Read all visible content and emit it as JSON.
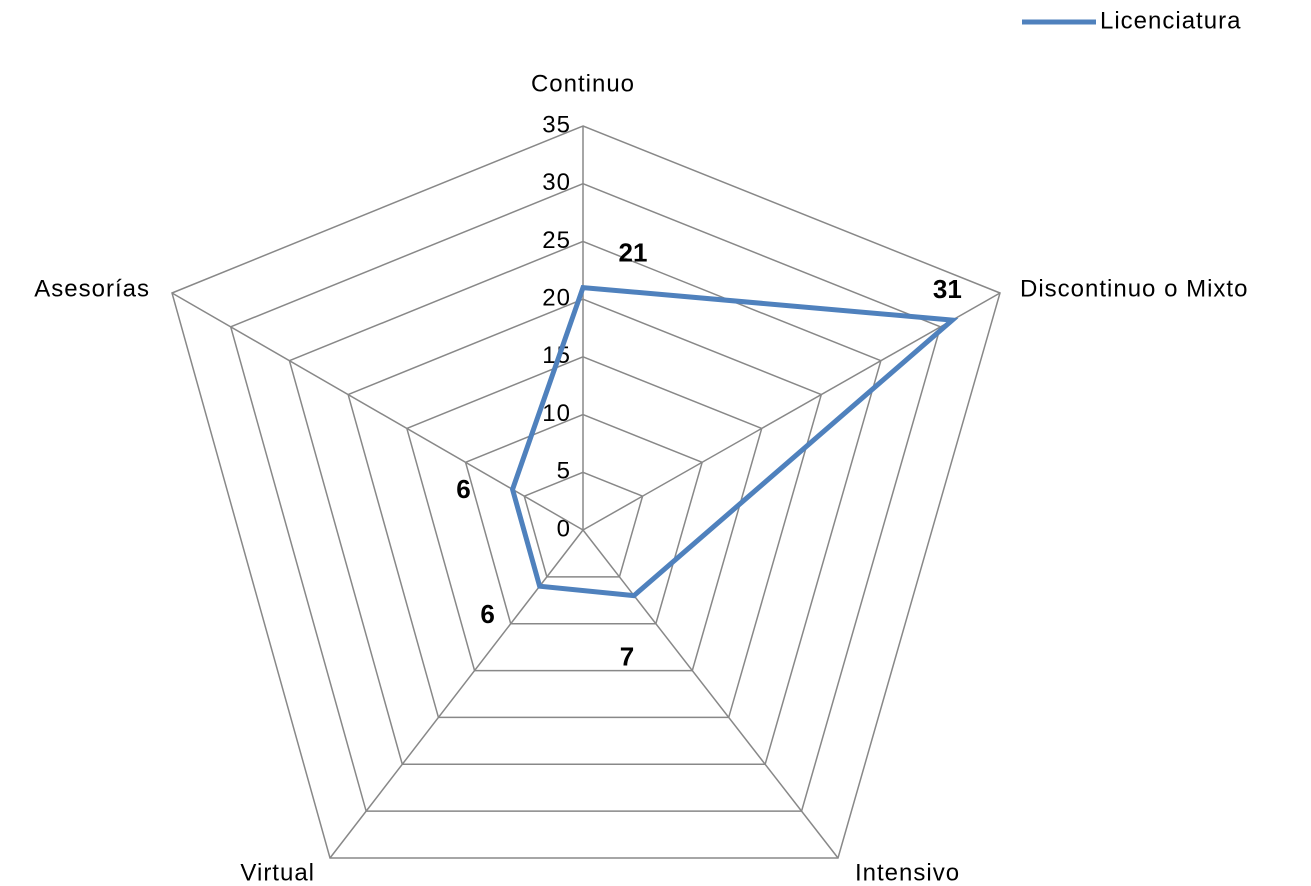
{
  "chart_data": {
    "type": "radar",
    "categories": [
      "Continuo",
      "Discontinuo o Mixto",
      "Intensivo",
      "Virtual",
      "Asesorías"
    ],
    "series": [
      {
        "name": "Licenciatura",
        "color": "#4f81bd",
        "values": [
          21,
          31,
          7,
          6,
          6
        ]
      }
    ],
    "ylim": [
      0,
      35
    ],
    "yticks": [
      0,
      5,
      10,
      15,
      20,
      25,
      30,
      35
    ],
    "grid": true,
    "legend": "top-right"
  }
}
